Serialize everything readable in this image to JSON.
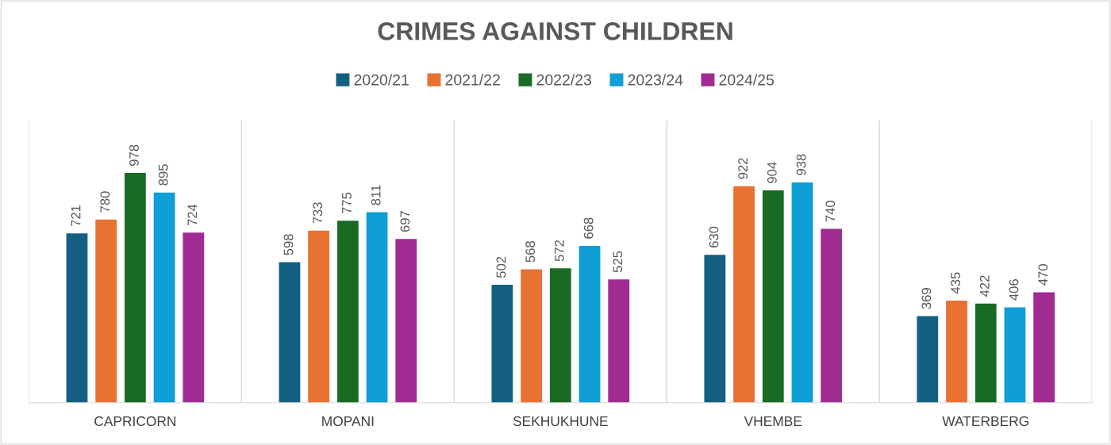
{
  "chart_data": {
    "type": "bar",
    "title": "CRIMES AGAINST CHILDREN",
    "categories": [
      "CAPRICORN",
      "MOPANI",
      "SEKHUKHUNE",
      "VHEMBE",
      "WATERBERG"
    ],
    "series": [
      {
        "name": "2020/21",
        "color": "#156082",
        "values": [
          721,
          598,
          502,
          630,
          369
        ]
      },
      {
        "name": "2021/22",
        "color": "#e97132",
        "values": [
          780,
          733,
          568,
          922,
          435
        ]
      },
      {
        "name": "2022/23",
        "color": "#196b24",
        "values": [
          978,
          775,
          572,
          904,
          422
        ]
      },
      {
        "name": "2023/24",
        "color": "#0f9ed5",
        "values": [
          895,
          811,
          668,
          938,
          406
        ]
      },
      {
        "name": "2024/25",
        "color": "#a02b93",
        "values": [
          724,
          697,
          525,
          740,
          470
        ]
      }
    ],
    "data_labels": true,
    "legend": "top",
    "grid": "x"
  }
}
